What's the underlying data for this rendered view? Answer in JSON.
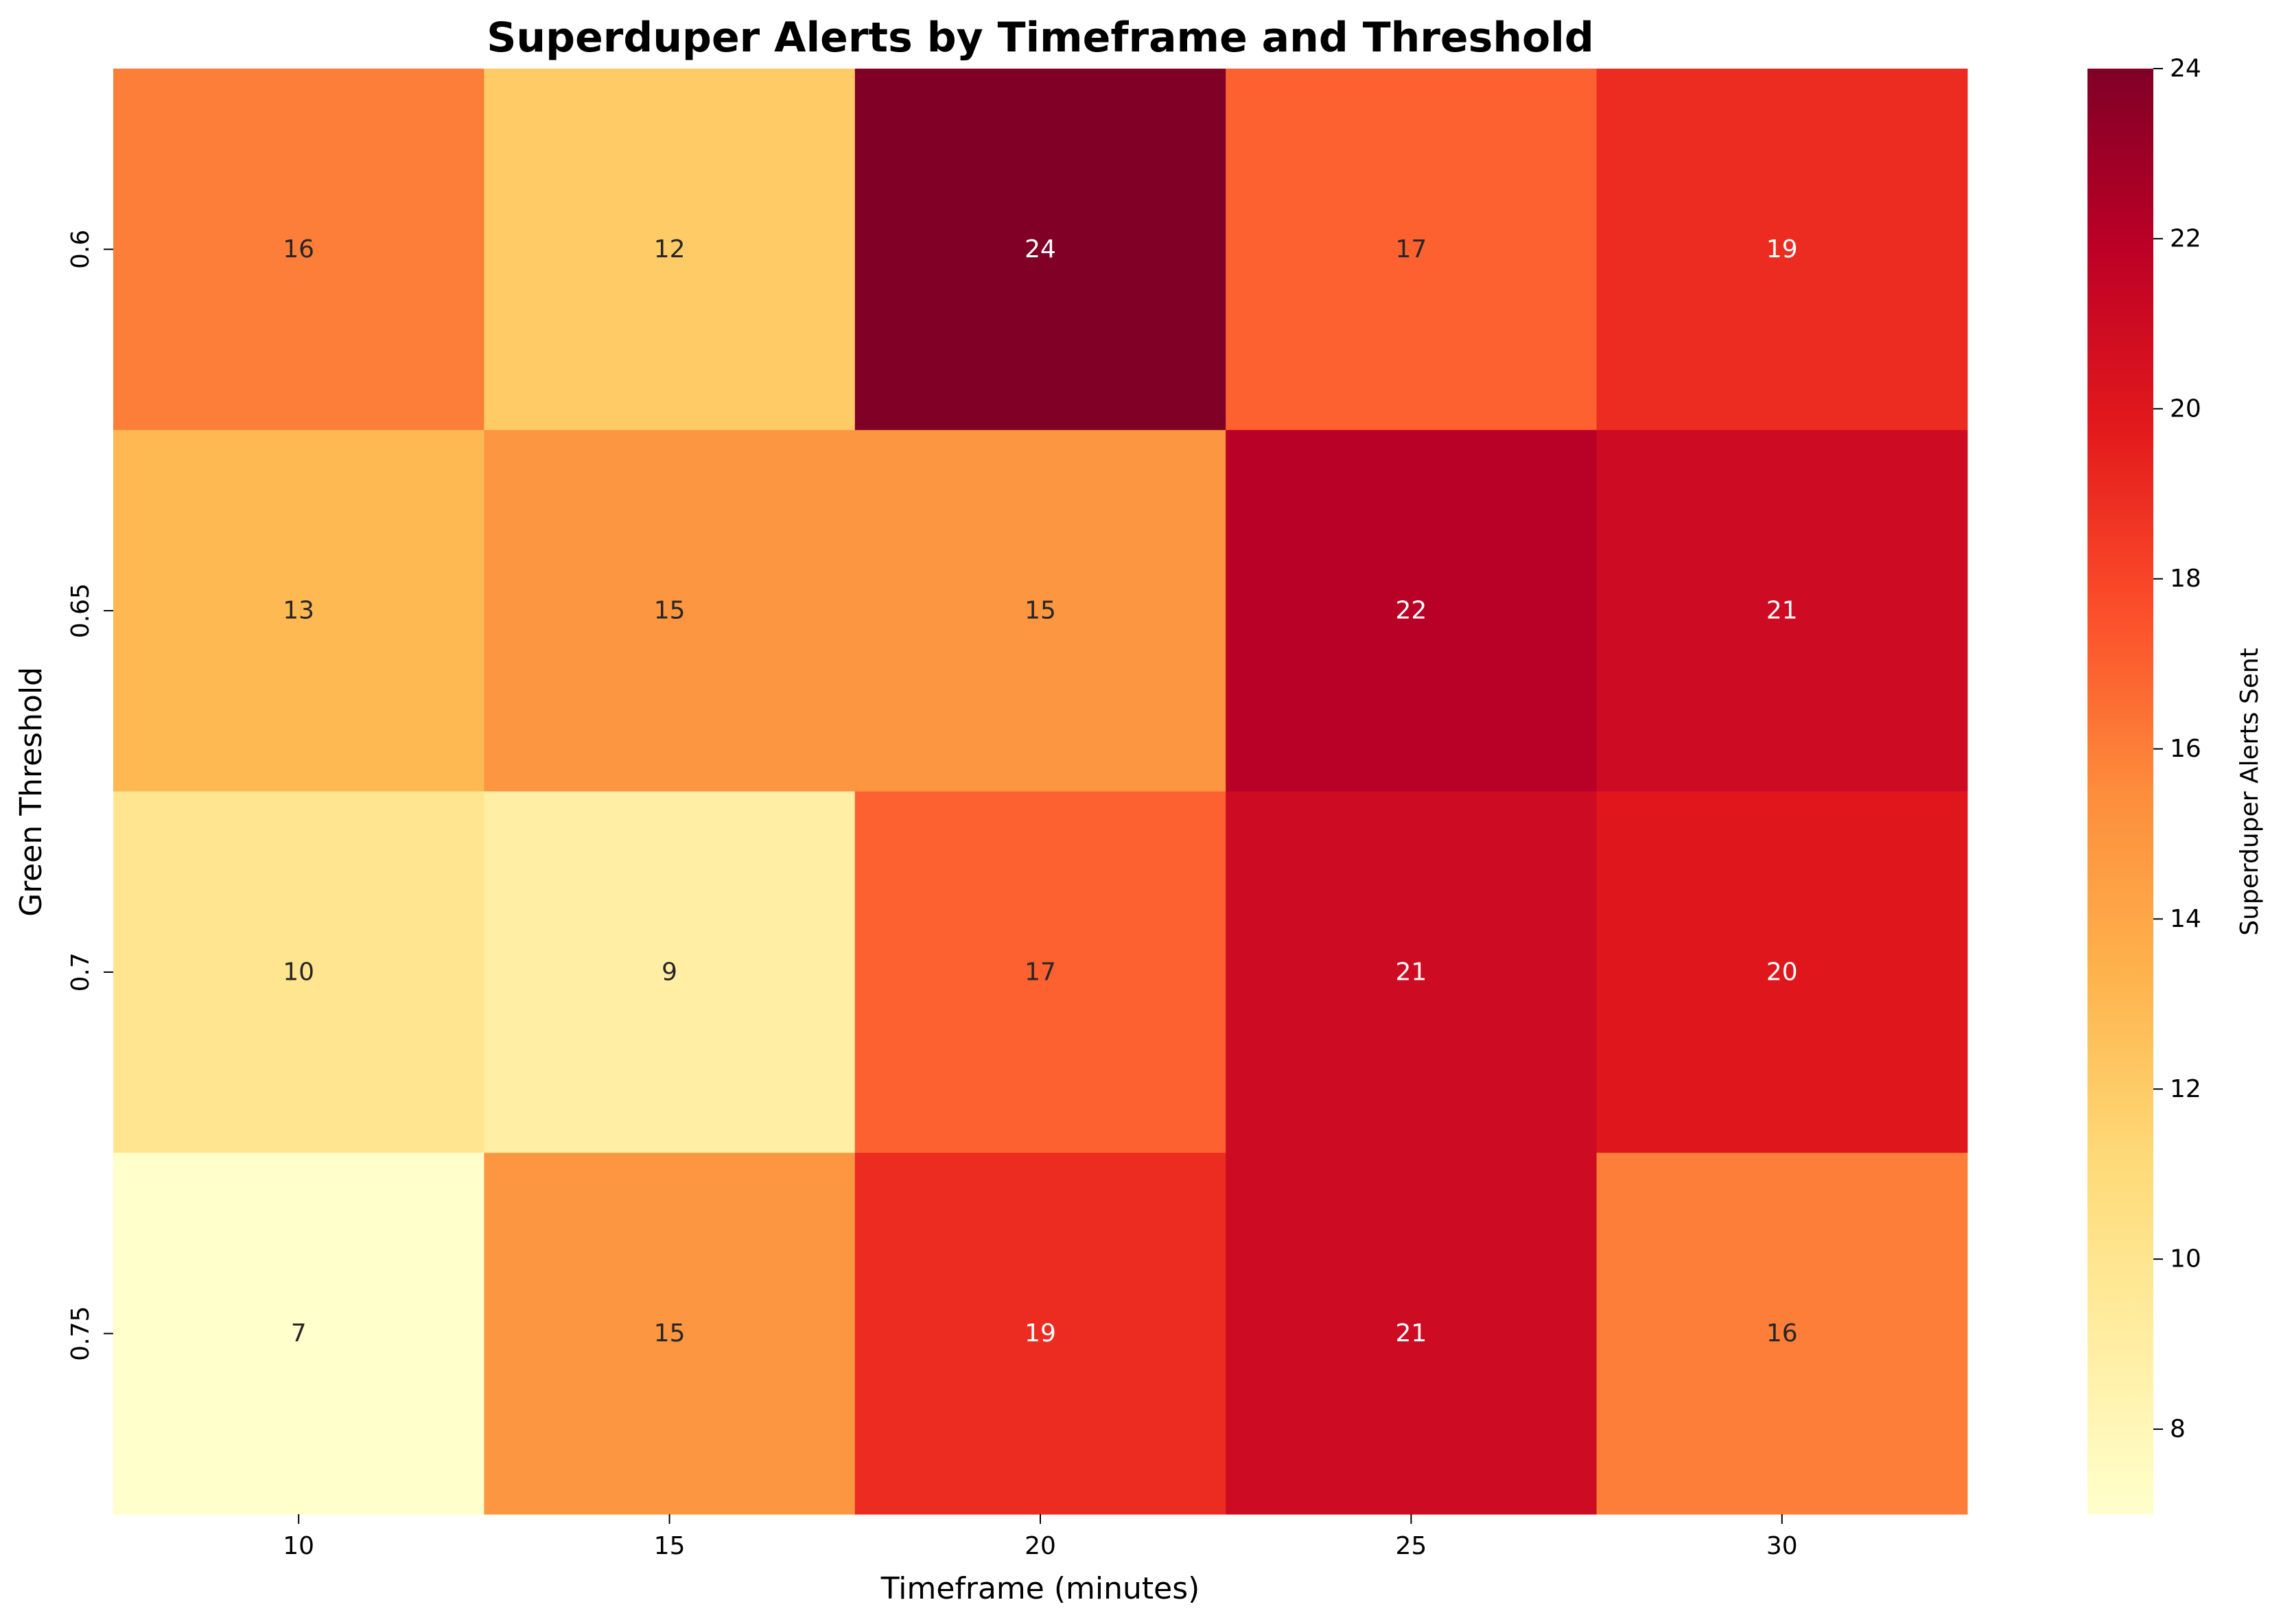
{
  "chart_data": {
    "type": "heatmap",
    "title": "Superduper Alerts by Timeframe and Threshold",
    "xlabel": "Timeframe (minutes)",
    "ylabel": "Green Threshold",
    "x_categories": [
      "10",
      "15",
      "20",
      "25",
      "30"
    ],
    "y_categories": [
      "0.6",
      "0.65",
      "0.7",
      "0.75"
    ],
    "values": [
      [
        16,
        12,
        24,
        17,
        19
      ],
      [
        13,
        15,
        15,
        22,
        21
      ],
      [
        10,
        9,
        17,
        21,
        20
      ],
      [
        7,
        15,
        19,
        21,
        16
      ]
    ],
    "colorbar": {
      "label": "Superduper Alerts Sent",
      "min": 7,
      "max": 24,
      "ticks": [
        8,
        10,
        12,
        14,
        16,
        18,
        20,
        22,
        24
      ],
      "colormap": "YlOrRd"
    },
    "annotated": true,
    "grid": false
  }
}
